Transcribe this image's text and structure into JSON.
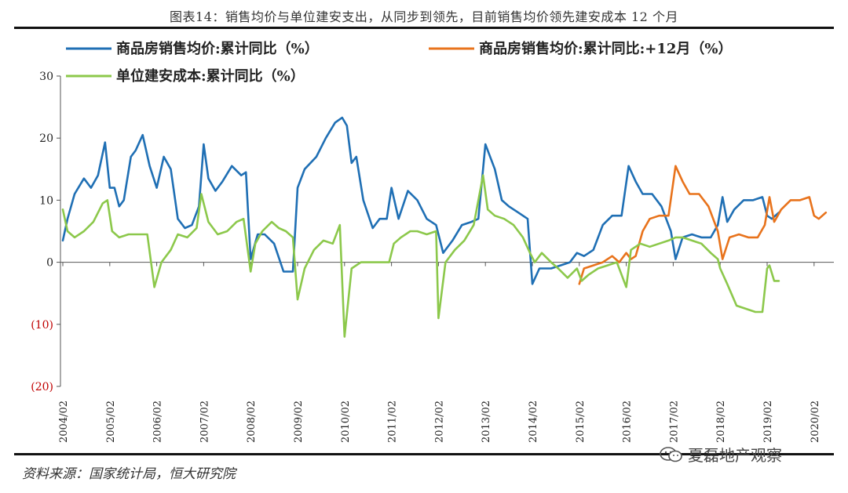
{
  "title": "图表14：销售均价与单位建安支出，从同步到领先，目前销售均价领先建安成本 12 个月",
  "source": "资料来源：国家统计局，恒大研究院",
  "watermark": "夏磊地产观察",
  "chart_data": {
    "type": "line",
    "ylim": [
      -20,
      30
    ],
    "yticks": [
      30,
      20,
      10,
      0,
      -10,
      -20
    ],
    "ytick_labels": [
      "30",
      "20",
      "10",
      "0",
      "(10)",
      "(20)"
    ],
    "x_tick_labels": [
      "2004/02",
      "2005/02",
      "2006/02",
      "2007/02",
      "2008/02",
      "2009/02",
      "2010/02",
      "2011/02",
      "2012/02",
      "2013/02",
      "2014/02",
      "2015/02",
      "2016/02",
      "2017/02",
      "2018/02",
      "2019/02",
      "2020/02"
    ],
    "legend": [
      {
        "name": "商品房销售均价:累计同比（%）",
        "color": "#1f6fb4"
      },
      {
        "name": "商品房销售均价:累计同比:+12月（%）",
        "color": "#e8731c"
      },
      {
        "name": "单位建安成本:累计同比（%）",
        "color": "#8cc84b"
      }
    ],
    "series": [
      {
        "name": "商品房销售均价:累计同比（%）",
        "color": "#1f6fb4",
        "points": [
          [
            2004.0,
            3.5
          ],
          [
            2004.1,
            7
          ],
          [
            2004.25,
            11
          ],
          [
            2004.45,
            13.5
          ],
          [
            2004.6,
            12
          ],
          [
            2004.75,
            14
          ],
          [
            2004.9,
            19.3
          ],
          [
            2005.0,
            12
          ],
          [
            2005.1,
            12
          ],
          [
            2005.2,
            9
          ],
          [
            2005.3,
            10
          ],
          [
            2005.45,
            17
          ],
          [
            2005.55,
            18
          ],
          [
            2005.7,
            20.5
          ],
          [
            2005.85,
            15.5
          ],
          [
            2006.0,
            12
          ],
          [
            2006.15,
            17
          ],
          [
            2006.3,
            15
          ],
          [
            2006.45,
            7
          ],
          [
            2006.6,
            5.5
          ],
          [
            2006.75,
            6
          ],
          [
            2006.9,
            9
          ],
          [
            2007.0,
            19
          ],
          [
            2007.1,
            13.5
          ],
          [
            2007.25,
            11.5
          ],
          [
            2007.4,
            13
          ],
          [
            2007.6,
            15.5
          ],
          [
            2007.8,
            14
          ],
          [
            2007.9,
            14.5
          ],
          [
            2008.0,
            0.5
          ],
          [
            2008.15,
            4.5
          ],
          [
            2008.3,
            4.5
          ],
          [
            2008.5,
            3
          ],
          [
            2008.7,
            -1.5
          ],
          [
            2008.9,
            -1.5
          ],
          [
            2009.0,
            12
          ],
          [
            2009.15,
            15
          ],
          [
            2009.4,
            17
          ],
          [
            2009.6,
            20
          ],
          [
            2009.8,
            22.5
          ],
          [
            2009.95,
            23.3
          ],
          [
            2010.05,
            22
          ],
          [
            2010.15,
            16
          ],
          [
            2010.25,
            17
          ],
          [
            2010.4,
            10
          ],
          [
            2010.6,
            5.5
          ],
          [
            2010.75,
            7
          ],
          [
            2010.9,
            7
          ],
          [
            2011.0,
            12
          ],
          [
            2011.15,
            7
          ],
          [
            2011.35,
            11.5
          ],
          [
            2011.55,
            10
          ],
          [
            2011.75,
            7
          ],
          [
            2011.95,
            6
          ],
          [
            2012.1,
            1.5
          ],
          [
            2012.3,
            3.5
          ],
          [
            2012.5,
            6
          ],
          [
            2012.7,
            6.5
          ],
          [
            2012.85,
            7
          ],
          [
            2013.0,
            19
          ],
          [
            2013.2,
            15
          ],
          [
            2013.35,
            10
          ],
          [
            2013.5,
            9
          ],
          [
            2013.7,
            8
          ],
          [
            2013.9,
            7
          ],
          [
            2014.0,
            -3.5
          ],
          [
            2014.15,
            -1
          ],
          [
            2014.4,
            -1
          ],
          [
            2014.6,
            -0.5
          ],
          [
            2014.8,
            0
          ],
          [
            2014.95,
            1.5
          ],
          [
            2015.1,
            1
          ],
          [
            2015.3,
            2
          ],
          [
            2015.5,
            6
          ],
          [
            2015.7,
            7.5
          ],
          [
            2015.9,
            7.5
          ],
          [
            2016.05,
            15.5
          ],
          [
            2016.2,
            13
          ],
          [
            2016.35,
            11
          ],
          [
            2016.55,
            11
          ],
          [
            2016.75,
            9
          ],
          [
            2016.95,
            5
          ],
          [
            2017.05,
            0.5
          ],
          [
            2017.2,
            4
          ],
          [
            2017.4,
            4.5
          ],
          [
            2017.6,
            4
          ],
          [
            2017.8,
            4
          ],
          [
            2017.95,
            6
          ],
          [
            2018.05,
            10.5
          ],
          [
            2018.15,
            6.5
          ],
          [
            2018.3,
            8.5
          ],
          [
            2018.5,
            10
          ],
          [
            2018.7,
            10
          ],
          [
            2018.9,
            10.5
          ],
          [
            2019.0,
            7.5
          ],
          [
            2019.1,
            7
          ],
          [
            2019.25,
            8
          ]
        ]
      },
      {
        "name": "商品房销售均价:累计同比:+12月（%）",
        "color": "#e8731c",
        "points": [
          [
            2015.0,
            -3.5
          ],
          [
            2015.1,
            -1
          ],
          [
            2015.3,
            -0.5
          ],
          [
            2015.5,
            0
          ],
          [
            2015.7,
            1
          ],
          [
            2015.85,
            0
          ],
          [
            2016.0,
            1.5
          ],
          [
            2016.1,
            0.5
          ],
          [
            2016.2,
            1
          ],
          [
            2016.35,
            5
          ],
          [
            2016.5,
            7
          ],
          [
            2016.7,
            7.5
          ],
          [
            2016.9,
            7.5
          ],
          [
            2017.05,
            15.5
          ],
          [
            2017.2,
            13
          ],
          [
            2017.35,
            11
          ],
          [
            2017.55,
            11
          ],
          [
            2017.75,
            9
          ],
          [
            2017.95,
            5
          ],
          [
            2018.05,
            0.5
          ],
          [
            2018.2,
            4
          ],
          [
            2018.4,
            4.5
          ],
          [
            2018.6,
            4
          ],
          [
            2018.8,
            4
          ],
          [
            2018.95,
            6
          ],
          [
            2019.05,
            10.5
          ],
          [
            2019.15,
            6.5
          ],
          [
            2019.3,
            8.5
          ],
          [
            2019.5,
            10
          ],
          [
            2019.7,
            10
          ],
          [
            2019.9,
            10.5
          ],
          [
            2020.0,
            7.5
          ],
          [
            2020.1,
            7
          ],
          [
            2020.25,
            8
          ]
        ]
      },
      {
        "name": "单位建安成本:累计同比（%）",
        "color": "#8cc84b",
        "points": [
          [
            2004.0,
            8.5
          ],
          [
            2004.1,
            5
          ],
          [
            2004.25,
            4
          ],
          [
            2004.45,
            5
          ],
          [
            2004.65,
            6.5
          ],
          [
            2004.85,
            9.5
          ],
          [
            2004.95,
            10
          ],
          [
            2005.05,
            5
          ],
          [
            2005.2,
            4
          ],
          [
            2005.4,
            4.5
          ],
          [
            2005.6,
            4.5
          ],
          [
            2005.8,
            4.5
          ],
          [
            2005.95,
            -4
          ],
          [
            2006.1,
            0
          ],
          [
            2006.3,
            2
          ],
          [
            2006.45,
            4.5
          ],
          [
            2006.65,
            4
          ],
          [
            2006.85,
            5.5
          ],
          [
            2006.95,
            11
          ],
          [
            2007.1,
            6.5
          ],
          [
            2007.3,
            4.5
          ],
          [
            2007.5,
            5
          ],
          [
            2007.7,
            6.5
          ],
          [
            2007.85,
            7
          ],
          [
            2008.0,
            -1.5
          ],
          [
            2008.1,
            3
          ],
          [
            2008.25,
            5
          ],
          [
            2008.45,
            6.5
          ],
          [
            2008.6,
            5.5
          ],
          [
            2008.75,
            5
          ],
          [
            2008.9,
            4
          ],
          [
            2009.0,
            -6
          ],
          [
            2009.15,
            -1
          ],
          [
            2009.35,
            2
          ],
          [
            2009.55,
            3.5
          ],
          [
            2009.75,
            3
          ],
          [
            2009.9,
            6
          ],
          [
            2010.0,
            -12
          ],
          [
            2010.15,
            -1
          ],
          [
            2010.35,
            0
          ],
          [
            2010.55,
            0
          ],
          [
            2010.75,
            0
          ],
          [
            2010.95,
            0
          ],
          [
            2011.05,
            3
          ],
          [
            2011.2,
            4
          ],
          [
            2011.4,
            5
          ],
          [
            2011.55,
            5
          ],
          [
            2011.75,
            4.5
          ],
          [
            2011.95,
            5
          ],
          [
            2012.0,
            -9
          ],
          [
            2012.15,
            0
          ],
          [
            2012.35,
            2
          ],
          [
            2012.55,
            3.5
          ],
          [
            2012.75,
            6
          ],
          [
            2012.95,
            14
          ],
          [
            2013.05,
            8.5
          ],
          [
            2013.2,
            7.5
          ],
          [
            2013.4,
            7
          ],
          [
            2013.6,
            6
          ],
          [
            2013.8,
            4
          ],
          [
            2013.95,
            1.5
          ],
          [
            2014.05,
            0
          ],
          [
            2014.2,
            1.5
          ],
          [
            2014.4,
            0
          ],
          [
            2014.55,
            -1
          ],
          [
            2014.75,
            -2.5
          ],
          [
            2014.95,
            -1
          ],
          [
            2015.05,
            -3
          ],
          [
            2015.2,
            -2
          ],
          [
            2015.4,
            -1
          ],
          [
            2015.6,
            -0.5
          ],
          [
            2015.8,
            0
          ],
          [
            2016.0,
            -4
          ],
          [
            2016.1,
            2
          ],
          [
            2016.3,
            3
          ],
          [
            2016.5,
            2.5
          ],
          [
            2016.7,
            3
          ],
          [
            2016.9,
            3.5
          ],
          [
            2017.05,
            4
          ],
          [
            2017.2,
            4
          ],
          [
            2017.4,
            3.5
          ],
          [
            2017.6,
            3
          ],
          [
            2017.8,
            1.5
          ],
          [
            2017.95,
            0.5
          ],
          [
            2018.0,
            -1
          ],
          [
            2018.15,
            -3.5
          ],
          [
            2018.35,
            -7
          ],
          [
            2018.55,
            -7.5
          ],
          [
            2018.75,
            -8
          ],
          [
            2018.9,
            -8
          ],
          [
            2019.0,
            -1
          ],
          [
            2019.05,
            -0.5
          ],
          [
            2019.15,
            -3
          ],
          [
            2019.25,
            -3
          ]
        ]
      }
    ]
  }
}
